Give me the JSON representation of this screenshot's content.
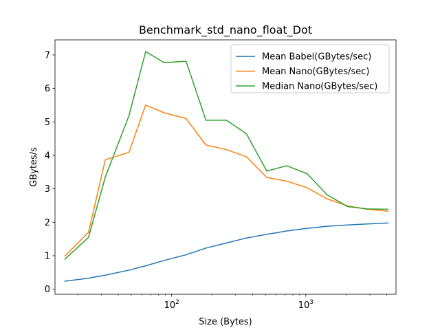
{
  "chart_data": {
    "type": "line",
    "title": "Benchmark_std_nano_float_Dot",
    "xlabel": "Size (Bytes)",
    "ylabel": "GBytes/s",
    "xscale": "log",
    "xlim": [
      13.5,
      4700
    ],
    "ylim": [
      -0.15,
      7.45
    ],
    "x_ticks": [
      {
        "value": 100,
        "base": "10",
        "exp": "2"
      },
      {
        "value": 1000,
        "base": "10",
        "exp": "3"
      }
    ],
    "y_ticks": [
      0,
      1,
      2,
      3,
      4,
      5,
      6,
      7
    ],
    "legend_position": "top-right",
    "grid": false,
    "x": [
      16,
      24,
      32,
      48,
      64,
      88,
      128,
      180,
      256,
      360,
      512,
      720,
      1024,
      1440,
      2048,
      2880,
      4096
    ],
    "series": [
      {
        "name": "Mean Babel(GBytes/sec)",
        "color": "#1f77b4",
        "values": [
          0.24,
          0.33,
          0.42,
          0.57,
          0.7,
          0.86,
          1.03,
          1.23,
          1.38,
          1.53,
          1.64,
          1.74,
          1.82,
          1.88,
          1.92,
          1.95,
          1.98
        ]
      },
      {
        "name": "Mean Nano(GBytes/sec)",
        "color": "#ff7f0e",
        "values": [
          0.99,
          1.7,
          3.87,
          4.09,
          5.5,
          5.27,
          5.1,
          4.31,
          4.17,
          3.96,
          3.34,
          3.23,
          3.03,
          2.7,
          2.49,
          2.39,
          2.33
        ]
      },
      {
        "name": "Median Nano(GBytes/sec)",
        "color": "#2ca02c",
        "values": [
          0.9,
          1.55,
          3.35,
          5.18,
          7.1,
          6.77,
          6.81,
          5.05,
          5.05,
          4.65,
          3.53,
          3.69,
          3.45,
          2.82,
          2.47,
          2.4,
          2.39
        ]
      }
    ]
  }
}
